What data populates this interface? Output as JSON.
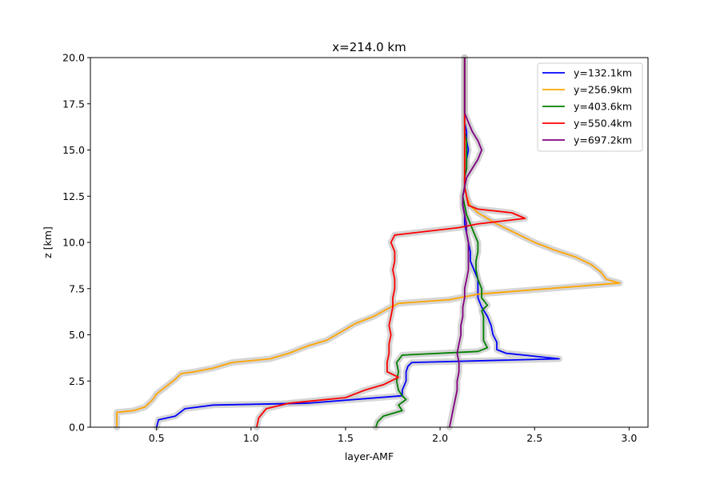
{
  "chart_data": {
    "type": "line",
    "title": "x=214.0 km",
    "xlabel": "layer-AMF",
    "ylabel": "z [km]",
    "xlim": [
      0.15,
      3.1
    ],
    "ylim": [
      0,
      20
    ],
    "xticks": [
      "0.5",
      "1.0",
      "1.5",
      "2.0",
      "2.5",
      "3.0"
    ],
    "yticks": [
      "0.0",
      "2.5",
      "5.0",
      "7.5",
      "10.0",
      "12.5",
      "15.0",
      "17.5",
      "20.0"
    ],
    "grid": false,
    "legend_position": "top-right",
    "series": [
      {
        "name": "y=132.1km",
        "color": "#0000ff",
        "points": [
          [
            0.5,
            0.0
          ],
          [
            0.51,
            0.4
          ],
          [
            0.6,
            0.6
          ],
          [
            0.65,
            1.0
          ],
          [
            0.8,
            1.2
          ],
          [
            1.3,
            1.3
          ],
          [
            1.8,
            1.7
          ],
          [
            1.8,
            2.0
          ],
          [
            1.82,
            2.5
          ],
          [
            1.82,
            3.0
          ],
          [
            1.83,
            3.3
          ],
          [
            1.85,
            3.5
          ],
          [
            2.63,
            3.7
          ],
          [
            2.35,
            4.0
          ],
          [
            2.3,
            4.2
          ],
          [
            2.3,
            4.6
          ],
          [
            2.28,
            5.0
          ],
          [
            2.27,
            5.5
          ],
          [
            2.25,
            6.0
          ],
          [
            2.22,
            6.5
          ],
          [
            2.2,
            7.0
          ],
          [
            2.2,
            7.5
          ],
          [
            2.2,
            8.0
          ],
          [
            2.18,
            8.5
          ],
          [
            2.16,
            9.0
          ],
          [
            2.16,
            9.5
          ],
          [
            2.15,
            10.0
          ],
          [
            2.14,
            10.5
          ],
          [
            2.13,
            11.0
          ],
          [
            2.13,
            11.5
          ],
          [
            2.12,
            12.0
          ],
          [
            2.12,
            12.5
          ],
          [
            2.13,
            13.0
          ],
          [
            2.13,
            13.5
          ],
          [
            2.14,
            14.0
          ],
          [
            2.14,
            14.5
          ],
          [
            2.15,
            15.0
          ],
          [
            2.14,
            15.5
          ],
          [
            2.14,
            16.0
          ],
          [
            2.13,
            16.5
          ],
          [
            2.13,
            17.0
          ],
          [
            2.13,
            18.0
          ],
          [
            2.13,
            19.0
          ],
          [
            2.13,
            20.0
          ]
        ]
      },
      {
        "name": "y=256.9km",
        "color": "#ffa500",
        "points": [
          [
            0.29,
            0.0
          ],
          [
            0.29,
            0.8
          ],
          [
            0.38,
            0.9
          ],
          [
            0.44,
            1.1
          ],
          [
            0.48,
            1.5
          ],
          [
            0.5,
            1.8
          ],
          [
            0.55,
            2.2
          ],
          [
            0.6,
            2.6
          ],
          [
            0.63,
            2.9
          ],
          [
            0.7,
            3.0
          ],
          [
            0.8,
            3.2
          ],
          [
            0.9,
            3.5
          ],
          [
            1.1,
            3.7
          ],
          [
            1.2,
            4.0
          ],
          [
            1.3,
            4.4
          ],
          [
            1.4,
            4.7
          ],
          [
            1.45,
            5.0
          ],
          [
            1.55,
            5.6
          ],
          [
            1.65,
            6.0
          ],
          [
            1.72,
            6.4
          ],
          [
            1.78,
            6.7
          ],
          [
            2.05,
            6.9
          ],
          [
            2.2,
            7.2
          ],
          [
            2.95,
            7.8
          ],
          [
            2.88,
            8.0
          ],
          [
            2.85,
            8.4
          ],
          [
            2.8,
            8.8
          ],
          [
            2.72,
            9.2
          ],
          [
            2.6,
            9.6
          ],
          [
            2.5,
            10.0
          ],
          [
            2.4,
            10.5
          ],
          [
            2.3,
            11.0
          ],
          [
            2.25,
            11.3
          ],
          [
            2.2,
            11.6
          ],
          [
            2.16,
            12.0
          ],
          [
            2.14,
            12.5
          ],
          [
            2.13,
            13.0
          ],
          [
            2.13,
            14.0
          ],
          [
            2.13,
            15.0
          ],
          [
            2.13,
            16.0
          ],
          [
            2.13,
            17.0
          ],
          [
            2.13,
            18.0
          ],
          [
            2.13,
            19.0
          ],
          [
            2.13,
            20.0
          ]
        ]
      },
      {
        "name": "y=403.6km",
        "color": "#008000",
        "points": [
          [
            1.66,
            0.0
          ],
          [
            1.67,
            0.3
          ],
          [
            1.7,
            0.6
          ],
          [
            1.8,
            0.9
          ],
          [
            1.78,
            1.2
          ],
          [
            1.82,
            1.5
          ],
          [
            1.8,
            1.7
          ],
          [
            1.78,
            2.0
          ],
          [
            1.77,
            2.5
          ],
          [
            1.78,
            3.0
          ],
          [
            1.77,
            3.5
          ],
          [
            1.8,
            3.9
          ],
          [
            2.2,
            4.1
          ],
          [
            2.25,
            4.3
          ],
          [
            2.23,
            4.7
          ],
          [
            2.23,
            5.0
          ],
          [
            2.23,
            5.5
          ],
          [
            2.23,
            6.0
          ],
          [
            2.22,
            6.3
          ],
          [
            2.25,
            6.6
          ],
          [
            2.22,
            7.0
          ],
          [
            2.22,
            7.5
          ],
          [
            2.2,
            8.0
          ],
          [
            2.19,
            8.5
          ],
          [
            2.19,
            9.0
          ],
          [
            2.2,
            9.5
          ],
          [
            2.2,
            10.0
          ],
          [
            2.18,
            10.5
          ],
          [
            2.16,
            11.0
          ],
          [
            2.14,
            11.5
          ],
          [
            2.13,
            12.0
          ],
          [
            2.12,
            12.5
          ],
          [
            2.13,
            13.0
          ],
          [
            2.13,
            13.5
          ],
          [
            2.14,
            14.0
          ],
          [
            2.14,
            14.5
          ],
          [
            2.14,
            15.0
          ],
          [
            2.14,
            15.5
          ],
          [
            2.13,
            16.0
          ],
          [
            2.13,
            17.0
          ],
          [
            2.13,
            18.0
          ],
          [
            2.13,
            19.0
          ],
          [
            2.13,
            20.0
          ]
        ]
      },
      {
        "name": "y=550.4km",
        "color": "#ff0000",
        "points": [
          [
            1.03,
            0.0
          ],
          [
            1.04,
            0.5
          ],
          [
            1.08,
            1.0
          ],
          [
            1.2,
            1.3
          ],
          [
            1.5,
            1.6
          ],
          [
            1.6,
            2.0
          ],
          [
            1.7,
            2.3
          ],
          [
            1.78,
            2.7
          ],
          [
            1.72,
            3.0
          ],
          [
            1.72,
            3.5
          ],
          [
            1.73,
            4.0
          ],
          [
            1.73,
            4.5
          ],
          [
            1.74,
            5.0
          ],
          [
            1.73,
            5.5
          ],
          [
            1.74,
            6.0
          ],
          [
            1.75,
            6.5
          ],
          [
            1.75,
            7.0
          ],
          [
            1.76,
            7.5
          ],
          [
            1.76,
            8.0
          ],
          [
            1.75,
            8.5
          ],
          [
            1.76,
            9.0
          ],
          [
            1.76,
            9.5
          ],
          [
            1.74,
            10.0
          ],
          [
            1.76,
            10.4
          ],
          [
            2.1,
            10.8
          ],
          [
            2.2,
            11.0
          ],
          [
            2.45,
            11.3
          ],
          [
            2.38,
            11.6
          ],
          [
            2.2,
            11.8
          ],
          [
            2.15,
            12.0
          ],
          [
            2.14,
            12.5
          ],
          [
            2.13,
            13.0
          ],
          [
            2.13,
            14.0
          ],
          [
            2.13,
            15.0
          ],
          [
            2.13,
            16.0
          ],
          [
            2.13,
            17.0
          ],
          [
            2.13,
            18.0
          ],
          [
            2.13,
            19.0
          ],
          [
            2.13,
            20.0
          ]
        ]
      },
      {
        "name": "y=697.2km",
        "color": "#800080",
        "points": [
          [
            2.05,
            0.0
          ],
          [
            2.06,
            0.5
          ],
          [
            2.07,
            1.0
          ],
          [
            2.08,
            1.5
          ],
          [
            2.09,
            2.0
          ],
          [
            2.09,
            2.5
          ],
          [
            2.1,
            3.0
          ],
          [
            2.1,
            3.5
          ],
          [
            2.09,
            4.0
          ],
          [
            2.1,
            4.5
          ],
          [
            2.11,
            5.0
          ],
          [
            2.11,
            5.5
          ],
          [
            2.12,
            6.0
          ],
          [
            2.12,
            6.5
          ],
          [
            2.13,
            7.0
          ],
          [
            2.13,
            7.5
          ],
          [
            2.14,
            8.0
          ],
          [
            2.15,
            8.5
          ],
          [
            2.15,
            9.0
          ],
          [
            2.15,
            9.5
          ],
          [
            2.15,
            10.0
          ],
          [
            2.14,
            10.5
          ],
          [
            2.14,
            11.0
          ],
          [
            2.13,
            11.5
          ],
          [
            2.12,
            12.0
          ],
          [
            2.12,
            12.5
          ],
          [
            2.13,
            13.0
          ],
          [
            2.14,
            13.5
          ],
          [
            2.17,
            14.0
          ],
          [
            2.2,
            14.5
          ],
          [
            2.22,
            15.0
          ],
          [
            2.2,
            15.5
          ],
          [
            2.17,
            16.0
          ],
          [
            2.15,
            16.5
          ],
          [
            2.13,
            17.0
          ],
          [
            2.13,
            17.5
          ],
          [
            2.13,
            18.5
          ],
          [
            2.13,
            20.0
          ]
        ]
      }
    ]
  }
}
